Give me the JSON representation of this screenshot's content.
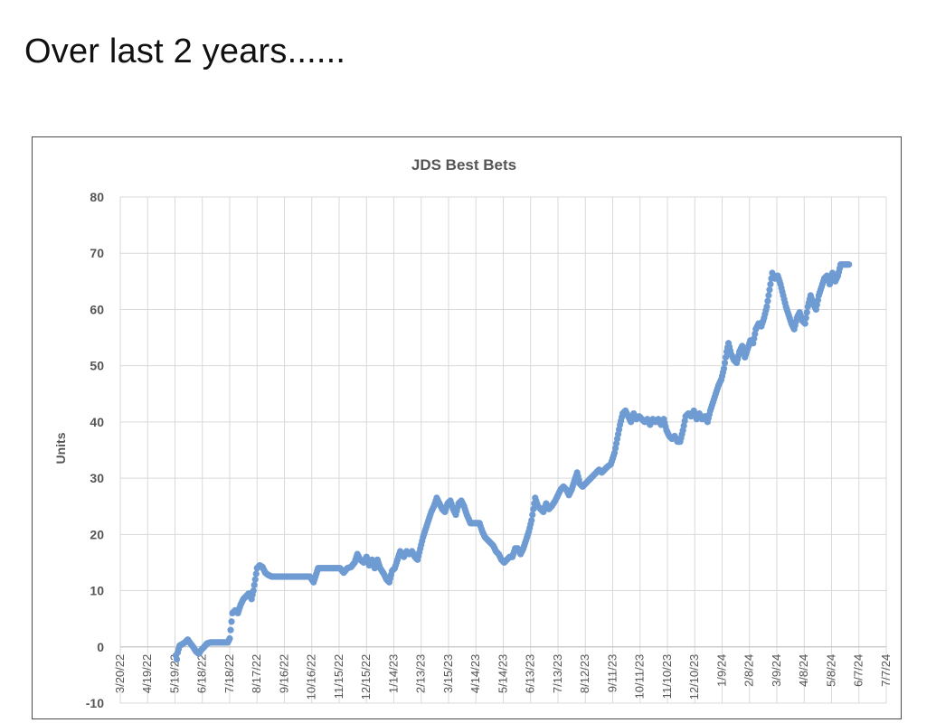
{
  "page": {
    "heading": "Over last 2 years......"
  },
  "chart_data": {
    "type": "scatter",
    "title": "JDS Best Bets",
    "xlabel": "",
    "ylabel": "Units",
    "ylim": [
      -10,
      80
    ],
    "yticks": [
      -10,
      0,
      10,
      20,
      30,
      40,
      50,
      60,
      70,
      80
    ],
    "xlim": [
      "2022-03-20",
      "2024-07-07"
    ],
    "xtick_labels": [
      "3/20/22",
      "4/19/22",
      "5/19/22",
      "6/18/22",
      "7/18/22",
      "8/17/22",
      "9/16/22",
      "10/16/22",
      "11/15/22",
      "12/15/22",
      "1/14/23",
      "2/13/23",
      "3/15/23",
      "4/14/23",
      "5/14/23",
      "6/13/23",
      "7/13/23",
      "8/12/23",
      "9/11/23",
      "10/11/23",
      "11/10/23",
      "12/10/23",
      "1/9/24",
      "2/8/24",
      "3/9/24",
      "4/8/24",
      "5/8/24",
      "6/7/24",
      "7/7/24"
    ],
    "grid": true,
    "marker_color": "#6f9bd3",
    "series": [
      {
        "points": [
          [
            "2022-05-20",
            -1.5
          ],
          [
            "2022-05-21",
            -2.2
          ],
          [
            "2022-05-22",
            -1.0
          ],
          [
            "2022-05-24",
            0.2
          ],
          [
            "2022-05-27",
            0.5
          ],
          [
            "2022-05-30",
            0.8
          ],
          [
            "2022-06-02",
            1.3
          ],
          [
            "2022-06-05",
            0.6
          ],
          [
            "2022-06-08",
            0.0
          ],
          [
            "2022-06-11",
            -0.8
          ],
          [
            "2022-06-14",
            -1.2
          ],
          [
            "2022-06-17",
            -0.5
          ],
          [
            "2022-06-20",
            0.0
          ],
          [
            "2022-06-23",
            0.6
          ],
          [
            "2022-06-27",
            0.8
          ],
          [
            "2022-07-01",
            0.8
          ],
          [
            "2022-07-06",
            0.8
          ],
          [
            "2022-07-11",
            0.8
          ],
          [
            "2022-07-16",
            0.8
          ],
          [
            "2022-07-18",
            1.5
          ],
          [
            "2022-07-19",
            3.0
          ],
          [
            "2022-07-20",
            4.5
          ],
          [
            "2022-07-21",
            6.0
          ],
          [
            "2022-07-24",
            6.5
          ],
          [
            "2022-07-27",
            6.0
          ],
          [
            "2022-07-30",
            7.5
          ],
          [
            "2022-08-02",
            8.5
          ],
          [
            "2022-08-05",
            9.0
          ],
          [
            "2022-08-08",
            9.5
          ],
          [
            "2022-08-11",
            8.5
          ],
          [
            "2022-08-13",
            10.0
          ],
          [
            "2022-08-15",
            12.0
          ],
          [
            "2022-08-17",
            14.0
          ],
          [
            "2022-08-20",
            14.5
          ],
          [
            "2022-08-23",
            14.2
          ],
          [
            "2022-08-26",
            13.2
          ],
          [
            "2022-08-29",
            12.8
          ],
          [
            "2022-09-02",
            12.5
          ],
          [
            "2022-09-08",
            12.5
          ],
          [
            "2022-09-14",
            12.5
          ],
          [
            "2022-09-20",
            12.5
          ],
          [
            "2022-09-26",
            12.5
          ],
          [
            "2022-10-02",
            12.5
          ],
          [
            "2022-10-08",
            12.5
          ],
          [
            "2022-10-14",
            12.5
          ],
          [
            "2022-10-18",
            11.5
          ],
          [
            "2022-10-20",
            12.5
          ],
          [
            "2022-10-23",
            14.0
          ],
          [
            "2022-10-29",
            14.0
          ],
          [
            "2022-11-04",
            14.0
          ],
          [
            "2022-11-10",
            14.0
          ],
          [
            "2022-11-16",
            14.0
          ],
          [
            "2022-11-20",
            13.2
          ],
          [
            "2022-11-24",
            14.0
          ],
          [
            "2022-11-28",
            14.2
          ],
          [
            "2022-12-02",
            15.0
          ],
          [
            "2022-12-05",
            16.5
          ],
          [
            "2022-12-08",
            15.5
          ],
          [
            "2022-12-12",
            15.0
          ],
          [
            "2022-12-15",
            16.0
          ],
          [
            "2022-12-18",
            14.5
          ],
          [
            "2022-12-21",
            15.5
          ],
          [
            "2022-12-24",
            14.0
          ],
          [
            "2022-12-27",
            15.5
          ],
          [
            "2022-12-30",
            14.0
          ],
          [
            "2023-01-03",
            13.0
          ],
          [
            "2023-01-06",
            12.0
          ],
          [
            "2023-01-09",
            11.5
          ],
          [
            "2023-01-12",
            13.5
          ],
          [
            "2023-01-15",
            14.0
          ],
          [
            "2023-01-18",
            15.5
          ],
          [
            "2023-01-21",
            17.0
          ],
          [
            "2023-01-25",
            16.0
          ],
          [
            "2023-01-28",
            17.0
          ],
          [
            "2023-01-31",
            16.5
          ],
          [
            "2023-02-03",
            17.0
          ],
          [
            "2023-02-06",
            16.0
          ],
          [
            "2023-02-09",
            15.5
          ],
          [
            "2023-02-12",
            17.5
          ],
          [
            "2023-02-15",
            19.5
          ],
          [
            "2023-02-18",
            21.0
          ],
          [
            "2023-02-21",
            22.5
          ],
          [
            "2023-02-24",
            24.0
          ],
          [
            "2023-02-27",
            25.0
          ],
          [
            "2023-03-02",
            26.5
          ],
          [
            "2023-03-05",
            25.5
          ],
          [
            "2023-03-08",
            24.5
          ],
          [
            "2023-03-11",
            24.0
          ],
          [
            "2023-03-14",
            25.5
          ],
          [
            "2023-03-17",
            26.0
          ],
          [
            "2023-03-20",
            24.5
          ],
          [
            "2023-03-23",
            23.5
          ],
          [
            "2023-03-26",
            25.5
          ],
          [
            "2023-03-29",
            26.0
          ],
          [
            "2023-04-01",
            25.0
          ],
          [
            "2023-04-04",
            23.5
          ],
          [
            "2023-04-08",
            22.0
          ],
          [
            "2023-04-14",
            22.0
          ],
          [
            "2023-04-18",
            22.0
          ],
          [
            "2023-04-21",
            20.5
          ],
          [
            "2023-04-24",
            19.5
          ],
          [
            "2023-04-27",
            19.0
          ],
          [
            "2023-04-30",
            18.5
          ],
          [
            "2023-05-03",
            18.0
          ],
          [
            "2023-05-06",
            17.0
          ],
          [
            "2023-05-09",
            16.5
          ],
          [
            "2023-05-12",
            15.5
          ],
          [
            "2023-05-15",
            15.0
          ],
          [
            "2023-05-18",
            15.5
          ],
          [
            "2023-05-21",
            16.0
          ],
          [
            "2023-05-24",
            16.0
          ],
          [
            "2023-05-27",
            17.5
          ],
          [
            "2023-05-30",
            17.5
          ],
          [
            "2023-06-02",
            16.5
          ],
          [
            "2023-06-05",
            17.5
          ],
          [
            "2023-06-08",
            19.0
          ],
          [
            "2023-06-11",
            20.5
          ],
          [
            "2023-06-14",
            22.5
          ],
          [
            "2023-06-16",
            24.5
          ],
          [
            "2023-06-18",
            26.5
          ],
          [
            "2023-06-21",
            25.0
          ],
          [
            "2023-06-24",
            24.5
          ],
          [
            "2023-06-27",
            24.0
          ],
          [
            "2023-06-30",
            25.5
          ],
          [
            "2023-07-03",
            24.5
          ],
          [
            "2023-07-06",
            25.0
          ],
          [
            "2023-07-10",
            26.0
          ],
          [
            "2023-07-13",
            27.0
          ],
          [
            "2023-07-16",
            28.0
          ],
          [
            "2023-07-19",
            28.5
          ],
          [
            "2023-07-22",
            28.0
          ],
          [
            "2023-07-25",
            27.0
          ],
          [
            "2023-07-28",
            28.0
          ],
          [
            "2023-07-31",
            29.5
          ],
          [
            "2023-08-03",
            31.0
          ],
          [
            "2023-08-06",
            29.0
          ],
          [
            "2023-08-09",
            28.5
          ],
          [
            "2023-08-12",
            29.0
          ],
          [
            "2023-08-15",
            29.5
          ],
          [
            "2023-08-18",
            30.0
          ],
          [
            "2023-08-21",
            30.5
          ],
          [
            "2023-08-24",
            31.0
          ],
          [
            "2023-08-27",
            31.5
          ],
          [
            "2023-08-30",
            31.0
          ],
          [
            "2023-09-02",
            31.5
          ],
          [
            "2023-09-05",
            32.0
          ],
          [
            "2023-09-09",
            32.5
          ],
          [
            "2023-09-13",
            34.5
          ],
          [
            "2023-09-16",
            37.0
          ],
          [
            "2023-09-19",
            39.5
          ],
          [
            "2023-09-22",
            41.5
          ],
          [
            "2023-09-25",
            42.0
          ],
          [
            "2023-09-28",
            41.0
          ],
          [
            "2023-10-01",
            40.0
          ],
          [
            "2023-10-04",
            41.5
          ],
          [
            "2023-10-07",
            40.5
          ],
          [
            "2023-10-10",
            41.0
          ],
          [
            "2023-10-13",
            40.5
          ],
          [
            "2023-10-16",
            40.0
          ],
          [
            "2023-10-19",
            40.5
          ],
          [
            "2023-10-22",
            39.5
          ],
          [
            "2023-10-25",
            40.5
          ],
          [
            "2023-10-28",
            40.0
          ],
          [
            "2023-10-31",
            40.5
          ],
          [
            "2023-11-03",
            39.5
          ],
          [
            "2023-11-06",
            40.5
          ],
          [
            "2023-11-09",
            38.5
          ],
          [
            "2023-11-12",
            37.5
          ],
          [
            "2023-11-15",
            37.0
          ],
          [
            "2023-11-18",
            37.5
          ],
          [
            "2023-11-21",
            36.5
          ],
          [
            "2023-11-24",
            36.5
          ],
          [
            "2023-11-27",
            38.5
          ],
          [
            "2023-11-30",
            41.0
          ],
          [
            "2023-12-03",
            41.5
          ],
          [
            "2023-12-06",
            41.0
          ],
          [
            "2023-12-09",
            42.0
          ],
          [
            "2023-12-12",
            40.5
          ],
          [
            "2023-12-15",
            41.5
          ],
          [
            "2023-12-18",
            40.5
          ],
          [
            "2023-12-21",
            41.0
          ],
          [
            "2023-12-24",
            40.0
          ],
          [
            "2023-12-27",
            42.0
          ],
          [
            "2023-12-30",
            43.5
          ],
          [
            "2024-01-02",
            45.0
          ],
          [
            "2024-01-05",
            46.5
          ],
          [
            "2024-01-08",
            47.5
          ],
          [
            "2024-01-11",
            49.5
          ],
          [
            "2024-01-14",
            52.5
          ],
          [
            "2024-01-16",
            54.0
          ],
          [
            "2024-01-19",
            52.0
          ],
          [
            "2024-01-22",
            51.0
          ],
          [
            "2024-01-25",
            50.5
          ],
          [
            "2024-01-28",
            52.5
          ],
          [
            "2024-01-31",
            53.5
          ],
          [
            "2024-02-03",
            51.5
          ],
          [
            "2024-02-06",
            53.0
          ],
          [
            "2024-02-09",
            54.5
          ],
          [
            "2024-02-12",
            54.0
          ],
          [
            "2024-02-15",
            56.5
          ],
          [
            "2024-02-18",
            57.5
          ],
          [
            "2024-02-21",
            57.0
          ],
          [
            "2024-02-24",
            58.5
          ],
          [
            "2024-02-27",
            60.5
          ],
          [
            "2024-03-01",
            63.5
          ],
          [
            "2024-03-04",
            66.5
          ],
          [
            "2024-03-07",
            65.5
          ],
          [
            "2024-03-10",
            66.0
          ],
          [
            "2024-03-13",
            64.5
          ],
          [
            "2024-03-16",
            62.5
          ],
          [
            "2024-03-19",
            60.5
          ],
          [
            "2024-03-22",
            59.0
          ],
          [
            "2024-03-25",
            57.5
          ],
          [
            "2024-03-28",
            56.5
          ],
          [
            "2024-03-31",
            58.5
          ],
          [
            "2024-04-03",
            59.5
          ],
          [
            "2024-04-06",
            58.0
          ],
          [
            "2024-04-09",
            57.5
          ],
          [
            "2024-04-12",
            60.5
          ],
          [
            "2024-04-15",
            62.5
          ],
          [
            "2024-04-18",
            61.0
          ],
          [
            "2024-04-21",
            60.0
          ],
          [
            "2024-04-24",
            62.5
          ],
          [
            "2024-04-27",
            64.0
          ],
          [
            "2024-04-30",
            65.5
          ],
          [
            "2024-05-03",
            66.0
          ],
          [
            "2024-05-06",
            64.5
          ],
          [
            "2024-05-09",
            66.5
          ],
          [
            "2024-05-12",
            65.0
          ],
          [
            "2024-05-15",
            66.0
          ],
          [
            "2024-05-18",
            68.0
          ],
          [
            "2024-05-21",
            68.0
          ],
          [
            "2024-05-24",
            68.0
          ],
          [
            "2024-05-27",
            68.0
          ]
        ]
      }
    ]
  }
}
